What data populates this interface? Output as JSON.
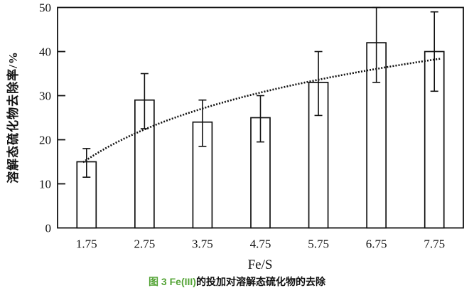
{
  "figure": {
    "background": "#ffffff",
    "ink_color": "#111111",
    "caption": {
      "prefix": "图 3 Fe(III)",
      "rest": "的投加对溶解态硫化物的去除",
      "prefix_color": "#55a437"
    }
  },
  "chart_data": {
    "type": "bar",
    "title": "图 3 Fe(III)的投加对溶解态硫化物的去除",
    "xlabel": "Fe/S",
    "ylabel": "溶解态硫化物去除率/%",
    "categories": [
      "1.75",
      "2.75",
      "3.75",
      "4.75",
      "5.75",
      "6.75",
      "7.75"
    ],
    "values": [
      15,
      29,
      24,
      25,
      33,
      42,
      40
    ],
    "error_upper": [
      3,
      6,
      5,
      5,
      7,
      8,
      9
    ],
    "error_lower": [
      3.5,
      6.5,
      5.5,
      5.5,
      7.5,
      9,
      9
    ],
    "ylim": [
      0,
      50
    ],
    "yticks": [
      "0",
      "10",
      "20",
      "30",
      "40",
      "50"
    ],
    "grid": false,
    "legend": "none",
    "bar_fill": "#ffffff",
    "bar_stroke": "#111111",
    "trendline": {
      "type": "logarithmic",
      "style": "dotted",
      "equation": "y = 6.87 + 15.29*ln(x)",
      "a": 6.87,
      "b": 15.29,
      "x_start": 1.69,
      "x_end": 7.86
    }
  }
}
